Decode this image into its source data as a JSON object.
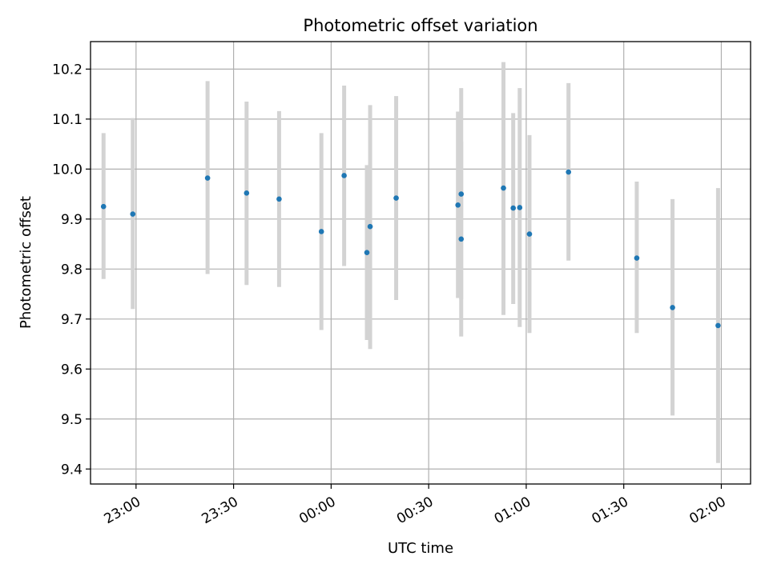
{
  "chart_data": {
    "type": "scatter",
    "title": "Photometric offset variation",
    "xlabel": "UTC time",
    "ylabel": "Photometric offset",
    "x_axis": {
      "kind": "time",
      "range": [
        "22:46",
        "02:09"
      ],
      "ticks": [
        "23:00",
        "23:30",
        "00:00",
        "00:30",
        "01:00",
        "01:30",
        "02:00"
      ]
    },
    "y_axis": {
      "range": [
        9.37,
        10.255
      ],
      "ticks": [
        "9.4",
        "9.5",
        "9.6",
        "9.7",
        "9.8",
        "9.9",
        "10.0",
        "10.1",
        "10.2"
      ]
    },
    "grid": true,
    "marker_color": "#1f77b4",
    "errorbar_color": "#d3d3d3",
    "points": [
      {
        "time": "22:50",
        "y": 9.925,
        "low": 9.78,
        "high": 10.072
      },
      {
        "time": "22:59",
        "y": 9.91,
        "low": 9.72,
        "high": 10.102
      },
      {
        "time": "23:22",
        "y": 9.982,
        "low": 9.79,
        "high": 10.176
      },
      {
        "time": "23:34",
        "y": 9.952,
        "low": 9.768,
        "high": 10.135
      },
      {
        "time": "23:44",
        "y": 9.94,
        "low": 9.764,
        "high": 10.116
      },
      {
        "time": "23:57",
        "y": 9.875,
        "low": 9.678,
        "high": 10.072
      },
      {
        "time": "00:04",
        "y": 9.987,
        "low": 9.806,
        "high": 10.167
      },
      {
        "time": "00:11",
        "y": 9.833,
        "low": 9.658,
        "high": 10.008
      },
      {
        "time": "00:12",
        "y": 9.885,
        "low": 9.64,
        "high": 10.128
      },
      {
        "time": "00:20",
        "y": 9.942,
        "low": 9.738,
        "high": 10.146
      },
      {
        "time": "00:39",
        "y": 9.928,
        "low": 9.742,
        "high": 10.115
      },
      {
        "time": "00:40",
        "y": 9.86,
        "low": 9.665,
        "high": 10.055
      },
      {
        "time": "00:40",
        "y": 9.95,
        "low": 9.74,
        "high": 10.162
      },
      {
        "time": "00:53",
        "y": 9.962,
        "low": 9.708,
        "high": 10.214
      },
      {
        "time": "00:56",
        "y": 9.922,
        "low": 9.73,
        "high": 10.112
      },
      {
        "time": "00:58",
        "y": 9.923,
        "low": 9.684,
        "high": 10.162
      },
      {
        "time": "01:01",
        "y": 9.87,
        "low": 9.672,
        "high": 10.068
      },
      {
        "time": "01:13",
        "y": 9.994,
        "low": 9.817,
        "high": 10.172
      },
      {
        "time": "01:34",
        "y": 9.822,
        "low": 9.672,
        "high": 9.975
      },
      {
        "time": "01:45",
        "y": 9.723,
        "low": 9.507,
        "high": 9.94
      },
      {
        "time": "01:59",
        "y": 9.687,
        "low": 9.412,
        "high": 9.962
      }
    ]
  }
}
